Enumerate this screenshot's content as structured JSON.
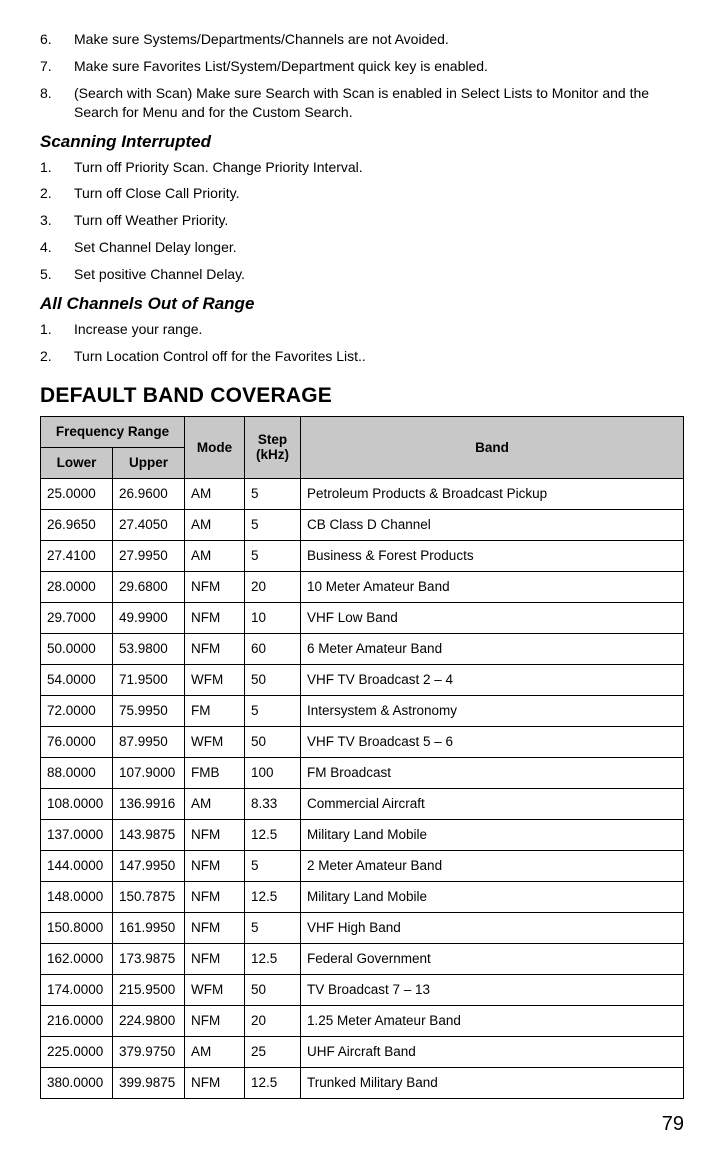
{
  "top_list": [
    {
      "n": "6.",
      "t": "Make sure Systems/Departments/Channels are not Avoided."
    },
    {
      "n": "7.",
      "t": "Make sure Favorites List/System/Department quick key is enabled."
    },
    {
      "n": "8.",
      "t": "(Search with Scan) Make sure Search with Scan is enabled in Select Lists to Monitor and the Search for Menu and for the Custom Search."
    }
  ],
  "scanning_heading": "Scanning Interrupted",
  "scanning_list": [
    {
      "n": "1.",
      "t": "Turn off Priority Scan. Change Priority Interval."
    },
    {
      "n": "2.",
      "t": "Turn off Close Call Priority."
    },
    {
      "n": "3.",
      "t": "Turn off Weather Priority."
    },
    {
      "n": "4.",
      "t": "Set Channel Delay longer."
    },
    {
      "n": "5.",
      "t": "Set positive Channel Delay."
    }
  ],
  "range_heading": "All Channels Out of Range",
  "range_list": [
    {
      "n": "1.",
      "t": "Increase your range."
    },
    {
      "n": "2.",
      "t": "Turn Location Control off for the Favorites List.."
    }
  ],
  "table_heading": "DEFAULT BAND COVERAGE",
  "headers": {
    "freq_range": "Frequency Range",
    "lower": "Lower",
    "upper": "Upper",
    "mode": "Mode",
    "step": "Step (kHz)",
    "band": "Band"
  },
  "rows": [
    {
      "lower": "25.0000",
      "upper": "26.9600",
      "mode": "AM",
      "step": "5",
      "band": "Petroleum Products & Broadcast Pickup"
    },
    {
      "lower": "26.9650",
      "upper": "27.4050",
      "mode": "AM",
      "step": "5",
      "band": "CB Class D Channel"
    },
    {
      "lower": "27.4100",
      "upper": "27.9950",
      "mode": "AM",
      "step": "5",
      "band": "Business & Forest Products"
    },
    {
      "lower": "28.0000",
      "upper": "29.6800",
      "mode": "NFM",
      "step": "20",
      "band": "10 Meter Amateur Band"
    },
    {
      "lower": "29.7000",
      "upper": "49.9900",
      "mode": "NFM",
      "step": "10",
      "band": "VHF Low Band"
    },
    {
      "lower": "50.0000",
      "upper": "53.9800",
      "mode": "NFM",
      "step": "60",
      "band": "6 Meter Amateur Band"
    },
    {
      "lower": "54.0000",
      "upper": "71.9500",
      "mode": "WFM",
      "step": "50",
      "band": "VHF TV Broadcast 2 – 4"
    },
    {
      "lower": "72.0000",
      "upper": "75.9950",
      "mode": "FM",
      "step": "5",
      "band": "Intersystem & Astronomy"
    },
    {
      "lower": "76.0000",
      "upper": "87.9950",
      "mode": "WFM",
      "step": "50",
      "band": "VHF TV Broadcast 5 – 6"
    },
    {
      "lower": "88.0000",
      "upper": "107.9000",
      "mode": "FMB",
      "step": "100",
      "band": "FM Broadcast"
    },
    {
      "lower": "108.0000",
      "upper": "136.9916",
      "mode": "AM",
      "step": "8.33",
      "band": "Commercial Aircraft"
    },
    {
      "lower": "137.0000",
      "upper": "143.9875",
      "mode": "NFM",
      "step": "12.5",
      "band": "Military Land Mobile"
    },
    {
      "lower": "144.0000",
      "upper": "147.9950",
      "mode": "NFM",
      "step": "5",
      "band": "2 Meter Amateur Band"
    },
    {
      "lower": "148.0000",
      "upper": "150.7875",
      "mode": "NFM",
      "step": "12.5",
      "band": "Military Land Mobile"
    },
    {
      "lower": "150.8000",
      "upper": "161.9950",
      "mode": "NFM",
      "step": "5",
      "band": "VHF High Band"
    },
    {
      "lower": "162.0000",
      "upper": "173.9875",
      "mode": "NFM",
      "step": "12.5",
      "band": "Federal Government"
    },
    {
      "lower": "174.0000",
      "upper": "215.9500",
      "mode": "WFM",
      "step": "50",
      "band": "TV Broadcast 7 – 13"
    },
    {
      "lower": "216.0000",
      "upper": "224.9800",
      "mode": "NFM",
      "step": "20",
      "band": "1.25 Meter Amateur Band"
    },
    {
      "lower": "225.0000",
      "upper": "379.9750",
      "mode": "AM",
      "step": "25",
      "band": "UHF Aircraft Band"
    },
    {
      "lower": "380.0000",
      "upper": "399.9875",
      "mode": "NFM",
      "step": "12.5",
      "band": "Trunked Military Band"
    }
  ],
  "page_number": "79",
  "colors": {
    "header_bg": "#c8c8c8",
    "border": "#000000",
    "text": "#000000",
    "bg": "#ffffff"
  }
}
